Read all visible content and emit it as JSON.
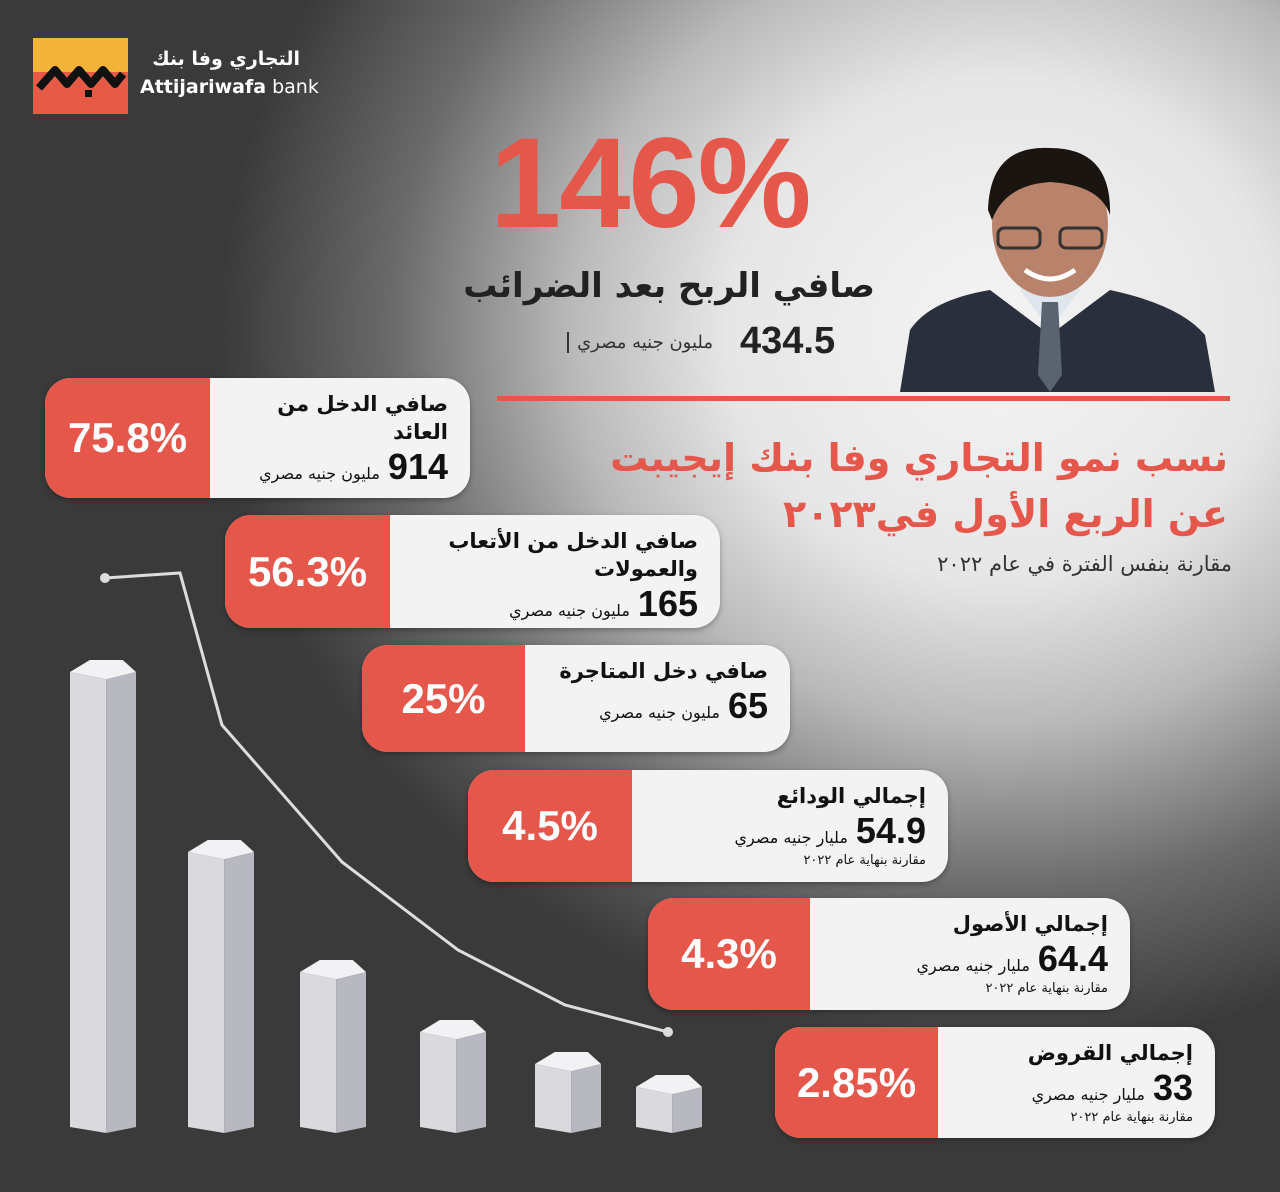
{
  "brand": {
    "name_ar": "التجاري وفا بنك",
    "name_en_bold": "Attijariwafa",
    "name_en_rest": " bank"
  },
  "headline": {
    "percent": "146%",
    "label": "صافي الربح بعد الضرائب",
    "value": "434.5",
    "unit": "مليون جنيه مصري"
  },
  "title": {
    "line1": "نسب نمو التجاري وفا بنك إيجيبت",
    "line2": "عن الربع الأول في٢٠٢٣",
    "subtitle": "مقارنة بنفس الفترة في عام ٢٠٢٢"
  },
  "colors": {
    "accent": "#e5574a",
    "card": "#f3f3f3"
  },
  "cards": [
    {
      "percent": "75.8%",
      "title": "صافي الدخل من العائد",
      "value": "914",
      "unit": "مليون جنيه مصري",
      "note": ""
    },
    {
      "percent": "56.3%",
      "title": "صافي الدخل من الأتعاب والعمولات",
      "value": "165",
      "unit": "مليون جنيه مصري",
      "note": ""
    },
    {
      "percent": "25%",
      "title": "صافي دخل المتاجرة",
      "value": "65",
      "unit": "مليون جنيه مصري",
      "note": ""
    },
    {
      "percent": "4.5%",
      "title": "إجمالي الودائع",
      "value": "54.9",
      "unit": "مليار جنيه مصري",
      "note": "مقارنة بنهاية عام ٢٠٢٢"
    },
    {
      "percent": "4.3%",
      "title": "إجمالي الأصول",
      "value": "64.4",
      "unit": "مليار جنيه مصري",
      "note": "مقارنة بنهاية عام ٢٠٢٢"
    },
    {
      "percent": "2.85%",
      "title": "إجمالي القروض",
      "value": "33",
      "unit": "مليار جنيه مصري",
      "note": "مقارنة بنهاية عام ٢٠٢٢"
    }
  ]
}
